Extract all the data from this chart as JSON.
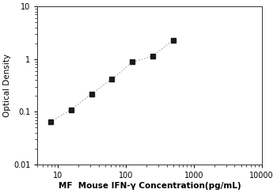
{
  "x": [
    7.8,
    15.6,
    31.2,
    62.5,
    125,
    250,
    500
  ],
  "y": [
    0.065,
    0.11,
    0.22,
    0.42,
    0.88,
    1.15,
    2.3
  ],
  "xlim": [
    5,
    10000
  ],
  "ylim": [
    0.01,
    10
  ],
  "xlabel": "MF  Mouse IFN-γ Concentration(pg/mL)",
  "ylabel": "Optical Density",
  "marker": "s",
  "marker_color": "#1a1a1a",
  "line_color": "#aaaaaa",
  "line_style": "dotted",
  "marker_size": 4,
  "xlabel_fontsize": 7.5,
  "ylabel_fontsize": 7.5,
  "tick_fontsize": 7,
  "background_color": "#ffffff",
  "xticks": [
    10,
    100,
    1000,
    10000
  ],
  "yticks": [
    0.01,
    0.1,
    1,
    10
  ],
  "xtick_labels": [
    "10",
    "100",
    "1000",
    "10000"
  ],
  "ytick_labels": [
    "0.01",
    "0.1",
    "1",
    "10"
  ]
}
